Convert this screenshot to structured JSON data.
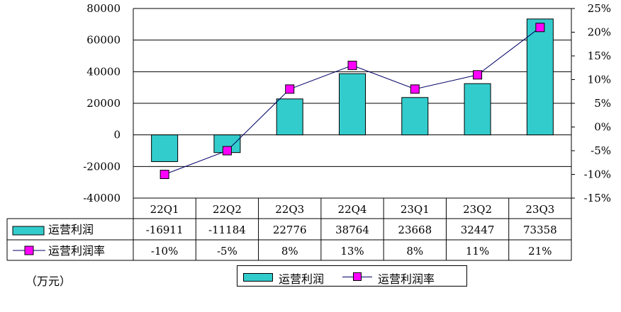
{
  "chart_data": {
    "type": "bar",
    "categories": [
      "22Q1",
      "22Q2",
      "22Q3",
      "22Q4",
      "23Q1",
      "23Q2",
      "23Q3"
    ],
    "series": [
      {
        "name": "运营利润",
        "type": "bar",
        "axis": "left",
        "values": [
          -16911,
          -11184,
          22776,
          38764,
          23668,
          32447,
          73358
        ],
        "value_labels": [
          "-16911",
          "-11184",
          "22776",
          "38764",
          "23668",
          "32447",
          "73358"
        ],
        "color": "#33cccc"
      },
      {
        "name": "运营利润率",
        "type": "line",
        "axis": "right",
        "values": [
          -10,
          -5,
          8,
          13,
          8,
          11,
          21
        ],
        "value_labels": [
          "-10%",
          "-5%",
          "8%",
          "13%",
          "8%",
          "11%",
          "21%"
        ],
        "color": "#000066",
        "marker_color": "#ff00ff"
      }
    ],
    "y_left": {
      "ylim": [
        -40000,
        80000
      ],
      "ticks": [
        "80000",
        "60000",
        "40000",
        "20000",
        "0",
        "-20000",
        "-40000"
      ]
    },
    "y_right": {
      "ylim": [
        -15,
        25
      ],
      "ticks": [
        "25%",
        "20%",
        "15%",
        "10%",
        "5%",
        "0%",
        "-5%",
        "-10%",
        "-15%"
      ]
    },
    "unit_label": "（万元）",
    "grid": true,
    "legend": {
      "placement": "bottom",
      "entries": [
        "运营利润",
        "运营利润率"
      ]
    },
    "data_table": true
  }
}
